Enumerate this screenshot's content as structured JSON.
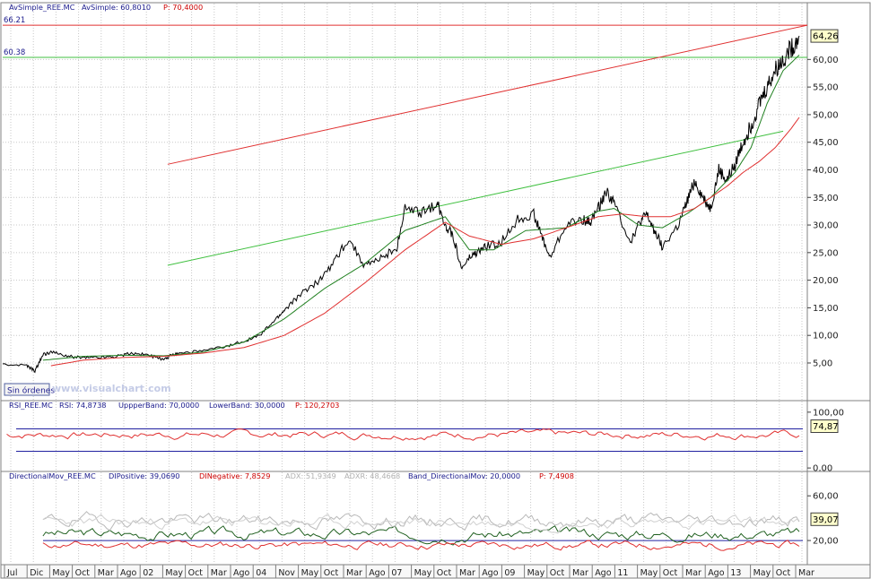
{
  "chart_data": [
    {
      "type": "line",
      "panel": "price",
      "header": [
        {
          "text": "AvSimple_REE.MC",
          "color": "#1a1a8c"
        },
        {
          "text": "AvSimple: 60,8010",
          "color": "#1a1a8c"
        },
        {
          "text": "P: 70,4000",
          "color": "#cc0000"
        }
      ],
      "y_ticks": [
        "5,00",
        "10,00",
        "15,00",
        "20,00",
        "25,00",
        "30,00",
        "35,00",
        "40,00",
        "45,00",
        "50,00",
        "55,00",
        "60,00"
      ],
      "ylim": [
        -1.5,
        68.5
      ],
      "last_value_label": "64,26",
      "level_lines": [
        {
          "label": "66.21",
          "value": 66.21,
          "color": "#e03030"
        },
        {
          "label": "60.38",
          "value": 60.38,
          "color": "#40c040"
        }
      ],
      "trend_lines": [
        {
          "color": "#e03030",
          "from": [
            0.205,
            41.0
          ],
          "to": [
            1.0,
            66.21
          ]
        },
        {
          "color": "#40c040",
          "from": [
            0.205,
            22.7
          ],
          "to": [
            0.97,
            47.0
          ]
        }
      ],
      "series": [
        {
          "color": "#000000",
          "x": [
            0.0,
            0.03,
            0.04,
            0.05,
            0.06,
            0.08,
            0.1,
            0.12,
            0.14,
            0.16,
            0.18,
            0.2,
            0.21,
            0.22,
            0.25,
            0.28,
            0.3,
            0.32,
            0.34,
            0.35,
            0.37,
            0.39,
            0.41,
            0.43,
            0.45,
            0.47,
            0.49,
            0.5,
            0.52,
            0.54,
            0.55,
            0.56,
            0.57,
            0.58,
            0.59,
            0.6,
            0.62,
            0.64,
            0.66,
            0.67,
            0.68,
            0.7,
            0.72,
            0.73,
            0.74,
            0.75,
            0.76,
            0.78,
            0.79,
            0.8,
            0.81,
            0.82,
            0.84,
            0.85,
            0.86,
            0.87,
            0.88,
            0.89,
            0.9,
            0.91,
            0.92,
            0.93,
            0.94,
            0.95,
            0.96,
            0.97,
            0.98,
            0.99
          ],
          "values": [
            4.8,
            4.5,
            3.5,
            6.5,
            7.0,
            6.2,
            6.0,
            6.0,
            6.2,
            6.8,
            6.5,
            5.5,
            6.5,
            6.8,
            7.2,
            8.0,
            9.0,
            10.0,
            13.0,
            14.5,
            17.5,
            19.5,
            23.0,
            27.5,
            22.5,
            24.0,
            26.0,
            33.0,
            32.0,
            34.0,
            30.0,
            28.0,
            22.0,
            24.0,
            25.0,
            26.0,
            27.0,
            31.0,
            32.0,
            28.0,
            24.0,
            30.0,
            31.0,
            30.5,
            33.0,
            36.0,
            34.0,
            27.0,
            30.0,
            32.0,
            29.0,
            26.0,
            30.0,
            34.0,
            38.0,
            35.0,
            33.0,
            40.0,
            38.0,
            41.0,
            45.0,
            48.0,
            52.0,
            55.0,
            58.0,
            60.0,
            62.0,
            64.26
          ]
        },
        {
          "color": "#208020",
          "x": [
            0.05,
            0.1,
            0.15,
            0.2,
            0.25,
            0.3,
            0.35,
            0.4,
            0.45,
            0.5,
            0.55,
            0.58,
            0.61,
            0.65,
            0.7,
            0.74,
            0.76,
            0.79,
            0.82,
            0.85,
            0.88,
            0.91,
            0.93,
            0.95,
            0.97,
            0.99
          ],
          "values": [
            5.5,
            6.2,
            6.4,
            6.3,
            7.0,
            8.8,
            13.0,
            18.5,
            23.0,
            29.0,
            31.5,
            25.5,
            25.5,
            29.0,
            29.5,
            32.5,
            33.0,
            30.0,
            29.5,
            32.0,
            35.0,
            39.5,
            44.0,
            52.0,
            58.0,
            60.8
          ]
        },
        {
          "color": "#e03030",
          "x": [
            0.06,
            0.1,
            0.15,
            0.2,
            0.25,
            0.3,
            0.35,
            0.4,
            0.45,
            0.5,
            0.55,
            0.58,
            0.62,
            0.66,
            0.7,
            0.74,
            0.77,
            0.8,
            0.83,
            0.86,
            0.88,
            0.9,
            0.92,
            0.94,
            0.96,
            0.98,
            0.99
          ],
          "values": [
            4.5,
            5.5,
            6.0,
            6.2,
            6.8,
            7.8,
            10.0,
            14.0,
            19.5,
            25.5,
            30.5,
            28.0,
            26.5,
            27.5,
            29.5,
            31.5,
            32.0,
            31.5,
            31.5,
            33.0,
            35.0,
            37.0,
            39.5,
            41.5,
            44.0,
            47.5,
            49.5
          ]
        }
      ]
    },
    {
      "type": "line",
      "panel": "rsi",
      "header": [
        {
          "text": "RSI_REE.MC",
          "color": "#1a1a8c"
        },
        {
          "text": "RSI: 74,8738",
          "color": "#1a1a8c"
        },
        {
          "text": "UppperBand: 70,0000",
          "color": "#1a1a8c"
        },
        {
          "text": "LowerBand: 30,0000",
          "color": "#1a1a8c"
        },
        {
          "text": "P: 120,2703",
          "color": "#cc0000"
        }
      ],
      "y_ticks": [
        "0,00",
        "100,00"
      ],
      "y_tick_values": [
        0,
        100
      ],
      "ylim": [
        -3,
        103
      ],
      "bands": [
        70,
        30
      ],
      "last_value_label": "74,87",
      "series": [
        {
          "color": "#e03030",
          "seed": 7,
          "base": 60,
          "amp": 14
        }
      ]
    },
    {
      "type": "line",
      "panel": "dmi",
      "header": [
        {
          "text": "DirectionalMov_REE.MC",
          "color": "#1a1a8c"
        },
        {
          "text": "DIPositive: 39,0690",
          "color": "#1a1a8c"
        },
        {
          "text": "DINegative: 7,8529",
          "color": "#cc0000"
        },
        {
          "text": "ADX: 51,9349",
          "color": "#b0b0b0"
        },
        {
          "text": "ADXR: 48,4668",
          "color": "#b0b0b0"
        },
        {
          "text": "Band_DirectionalMov: 20,0000",
          "color": "#1a1a8c"
        },
        {
          "text": "P: 7,4908",
          "color": "#cc0000"
        }
      ],
      "y_ticks": [
        "20,00",
        "60,00"
      ],
      "y_tick_values": [
        20,
        60
      ],
      "ylim": [
        0,
        73
      ],
      "band": 20,
      "last_value_label": "39,07",
      "series": [
        {
          "color": "#206020",
          "seed": 3,
          "base": 26,
          "amp": 10
        },
        {
          "color": "#e03030",
          "seed": 11,
          "base": 16,
          "amp": 7
        },
        {
          "color": "#b8b8b8",
          "seed": 19,
          "base": 38,
          "amp": 12
        },
        {
          "color": "#d0d0d0",
          "seed": 23,
          "base": 36,
          "amp": 10
        }
      ]
    }
  ],
  "x_axis": {
    "labels": [
      "Jul",
      "Dic",
      "May",
      "Oct",
      "Mar",
      "Ago",
      "02",
      "May",
      "Oct",
      "Mar",
      "Ago",
      "04",
      "Nov",
      "May",
      "Oct",
      "Mar",
      "Ago",
      "07",
      "May",
      "Oct",
      "Mar",
      "Ago",
      "09",
      "May",
      "Oct",
      "Mar",
      "Ago",
      "11",
      "May",
      "Oct",
      "Mar",
      "Ago",
      "13",
      "May",
      "Oct",
      "Mar"
    ]
  },
  "footer": {
    "button_label": "Sin órdenes",
    "watermark": "www.visualchart.com"
  }
}
